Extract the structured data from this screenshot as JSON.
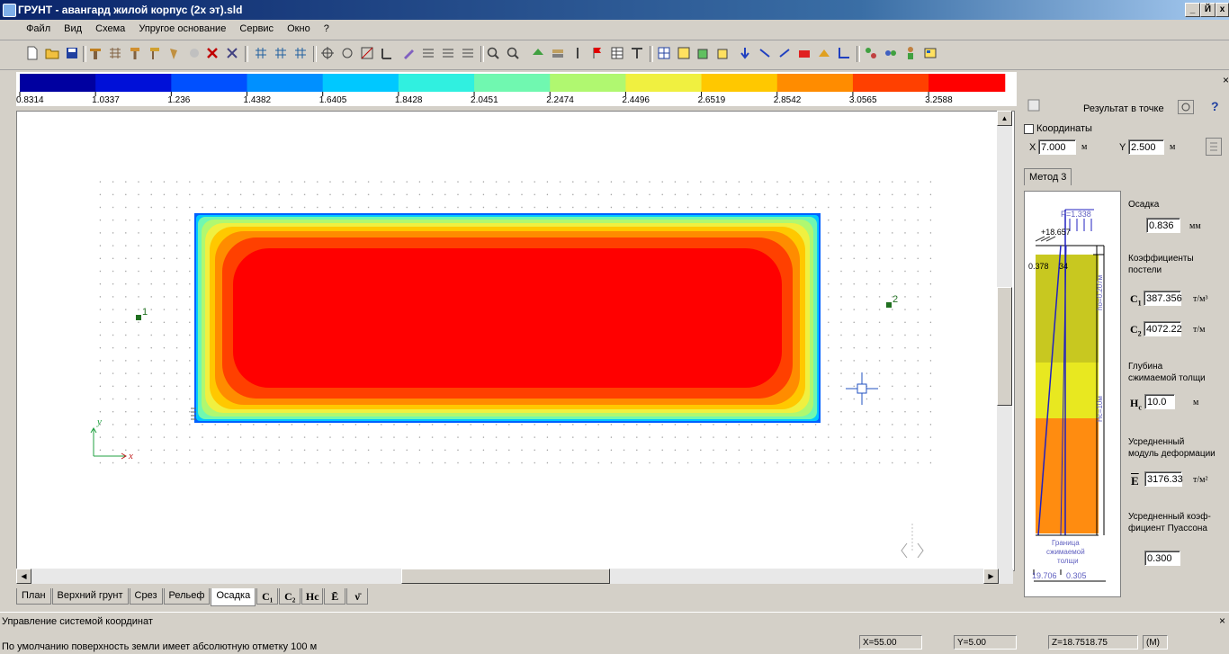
{
  "window": {
    "title": "ГРУНТ - авангард жилой корпус (2х эт).sld",
    "min": "_",
    "max": "Й",
    "close": "x"
  },
  "menu": [
    "Файл",
    "Вид",
    "Схема",
    "Упругое основание",
    "Сервис",
    "Окно",
    "?"
  ],
  "scale": {
    "labels": [
      "0.8314",
      "1.0337",
      "1.236",
      "1.4382",
      "1.6405",
      "1.8428",
      "2.0451",
      "2.2474",
      "2.4496",
      "2.6519",
      "2.8542",
      "3.0565",
      "3.2588"
    ],
    "colors": [
      "#0000a0",
      "#0010d8",
      "#0050ff",
      "#0090ff",
      "#00c8ff",
      "#30f0e0",
      "#70f8b0",
      "#b0f870",
      "#f0f040",
      "#ffc800",
      "#ff8c00",
      "#ff4000",
      "#ff0000"
    ]
  },
  "canvas": {
    "point1_label": "1",
    "point2_label": "2",
    "axis_y": "y",
    "axis_x": "x"
  },
  "tabs": [
    {
      "label": "План",
      "sym": false,
      "active": false
    },
    {
      "label": "Верхний грунт",
      "sym": false,
      "active": false
    },
    {
      "label": "Срез",
      "sym": false,
      "active": false
    },
    {
      "label": "Рельеф",
      "sym": false,
      "active": false
    },
    {
      "label": "Осадка",
      "sym": false,
      "active": true
    },
    {
      "label": "C₁",
      "sym": true,
      "active": false
    },
    {
      "label": "C₂",
      "sym": true,
      "active": false
    },
    {
      "label": "Hc",
      "sym": true,
      "active": false
    },
    {
      "label": "Ē",
      "sym": true,
      "active": false
    },
    {
      "label": "ν̄",
      "sym": true,
      "active": false
    }
  ],
  "coord_panel": {
    "title": "Управление системой координат",
    "hint": "По умолчанию поверхность земли имеет абсолютную отметку 100 м",
    "status_x": "X=55.00",
    "status_y": "Y=5.00",
    "status_z": "Z=18.7518.75",
    "status_unit": "(M)"
  },
  "result": {
    "title": "Результат в точке",
    "help": "?",
    "coords_label": "Координаты",
    "x_label": "X",
    "x_value": "7.000",
    "x_unit": "м",
    "y_label": "Y",
    "y_value": "2.500",
    "y_unit": "м",
    "method_tab": "Метод 3",
    "settlement_label": "Осадка",
    "settlement_value": "0.836",
    "settlement_unit": "мм",
    "bed_label_1": "Коэффициенты",
    "bed_label_2": "постели",
    "c1_value": "387.356",
    "c1_unit": "т/м³",
    "c2_value": "4072.22",
    "c2_unit": "т/м",
    "depth_label_1": "Глубина",
    "depth_label_2": "сжимаемой толщи",
    "hc_value": "10.0",
    "hc_unit": "м",
    "e_label_1": "Усредненный",
    "e_label_2": "модуль деформации",
    "e_value": "3176.33",
    "e_unit": "т/м²",
    "nu_label_1": "Усредненный коэф-",
    "nu_label_2": "фициент Пуассона",
    "nu_value": "0.300",
    "diagram": {
      "p_label": "P=1.338",
      "top_value": "+18.657",
      "sig_left": "0.378",
      "sig_right": "34",
      "ho_label": "ho=0.207м",
      "hc_label": "Hc=10м",
      "boundary_1": "Граница",
      "boundary_2": "сжимаемой",
      "boundary_3": "толщи",
      "bottom_left": "19.706",
      "bottom_right": "0.305"
    }
  }
}
